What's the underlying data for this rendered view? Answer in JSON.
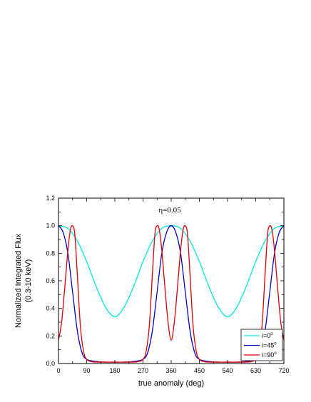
{
  "chart_data": {
    "type": "line",
    "title": "",
    "xlabel": "true anomaly (deg)",
    "ylabel": "Normalized Integrated Flux",
    "ylabel2": "(0.3-10 keV)",
    "annotation": "η=0.05",
    "xlim": [
      0,
      720
    ],
    "ylim": [
      0.0,
      1.2
    ],
    "xticks": [
      0,
      90,
      180,
      270,
      360,
      450,
      540,
      630,
      720
    ],
    "yticks": [
      0.0,
      0.2,
      0.4,
      0.6,
      0.8,
      1.0,
      1.2
    ],
    "ytick_labels": [
      "0.0",
      "0.2",
      "0.4",
      "0.6",
      "0.8",
      "1.0",
      "1.2"
    ],
    "legend_position": "bottom-right",
    "series": [
      {
        "name": "i=0°",
        "legend_main": "i=0",
        "legend_sup": "o",
        "color": "#00e5e5",
        "x": [
          0,
          30,
          60,
          90,
          120,
          150,
          180,
          210,
          240,
          270,
          300,
          330,
          360,
          390,
          420,
          450,
          480,
          510,
          540,
          570,
          600,
          630,
          660,
          690,
          720
        ],
        "y": [
          1.0,
          0.98,
          0.89,
          0.74,
          0.56,
          0.41,
          0.34,
          0.41,
          0.56,
          0.74,
          0.89,
          0.98,
          1.0,
          0.98,
          0.89,
          0.74,
          0.56,
          0.41,
          0.34,
          0.41,
          0.56,
          0.74,
          0.89,
          0.98,
          1.0
        ]
      },
      {
        "name": "i=45°",
        "legend_main": "i=45",
        "legend_sup": "o",
        "color": "#0000cc",
        "x": [
          0,
          15,
          30,
          45,
          60,
          75,
          90,
          120,
          150,
          180,
          210,
          240,
          270,
          285,
          300,
          315,
          330,
          345,
          360,
          375,
          390,
          405,
          420,
          435,
          450,
          480,
          510,
          540,
          570,
          600,
          630,
          645,
          660,
          675,
          690,
          705,
          720
        ],
        "y": [
          1.0,
          0.95,
          0.8,
          0.52,
          0.24,
          0.08,
          0.03,
          0.015,
          0.01,
          0.01,
          0.01,
          0.015,
          0.03,
          0.08,
          0.24,
          0.52,
          0.8,
          0.95,
          1.0,
          0.95,
          0.8,
          0.52,
          0.24,
          0.08,
          0.03,
          0.015,
          0.01,
          0.01,
          0.01,
          0.015,
          0.03,
          0.08,
          0.24,
          0.52,
          0.8,
          0.95,
          1.0
        ]
      },
      {
        "name": "i=90°",
        "legend_main": "i=90",
        "legend_sup": "o",
        "color": "#e00000",
        "x": [
          0,
          10,
          20,
          30,
          38,
          45,
          52,
          60,
          70,
          80,
          90,
          110,
          150,
          180,
          210,
          250,
          270,
          280,
          290,
          300,
          308,
          315,
          322,
          330,
          340,
          350,
          360,
          370,
          380,
          390,
          398,
          405,
          412,
          420,
          430,
          440,
          450,
          470,
          510,
          540,
          570,
          610,
          630,
          640,
          650,
          660,
          668,
          675,
          682,
          690,
          700,
          710,
          720
        ],
        "y": [
          0.17,
          0.3,
          0.55,
          0.82,
          0.97,
          1.0,
          0.94,
          0.65,
          0.27,
          0.09,
          0.03,
          0.012,
          0.01,
          0.01,
          0.01,
          0.012,
          0.03,
          0.09,
          0.27,
          0.65,
          0.94,
          1.0,
          0.97,
          0.82,
          0.55,
          0.3,
          0.17,
          0.3,
          0.55,
          0.82,
          0.97,
          1.0,
          0.94,
          0.65,
          0.27,
          0.09,
          0.03,
          0.012,
          0.01,
          0.01,
          0.01,
          0.012,
          0.03,
          0.09,
          0.27,
          0.65,
          0.94,
          1.0,
          0.97,
          0.82,
          0.55,
          0.3,
          0.17
        ]
      }
    ]
  }
}
